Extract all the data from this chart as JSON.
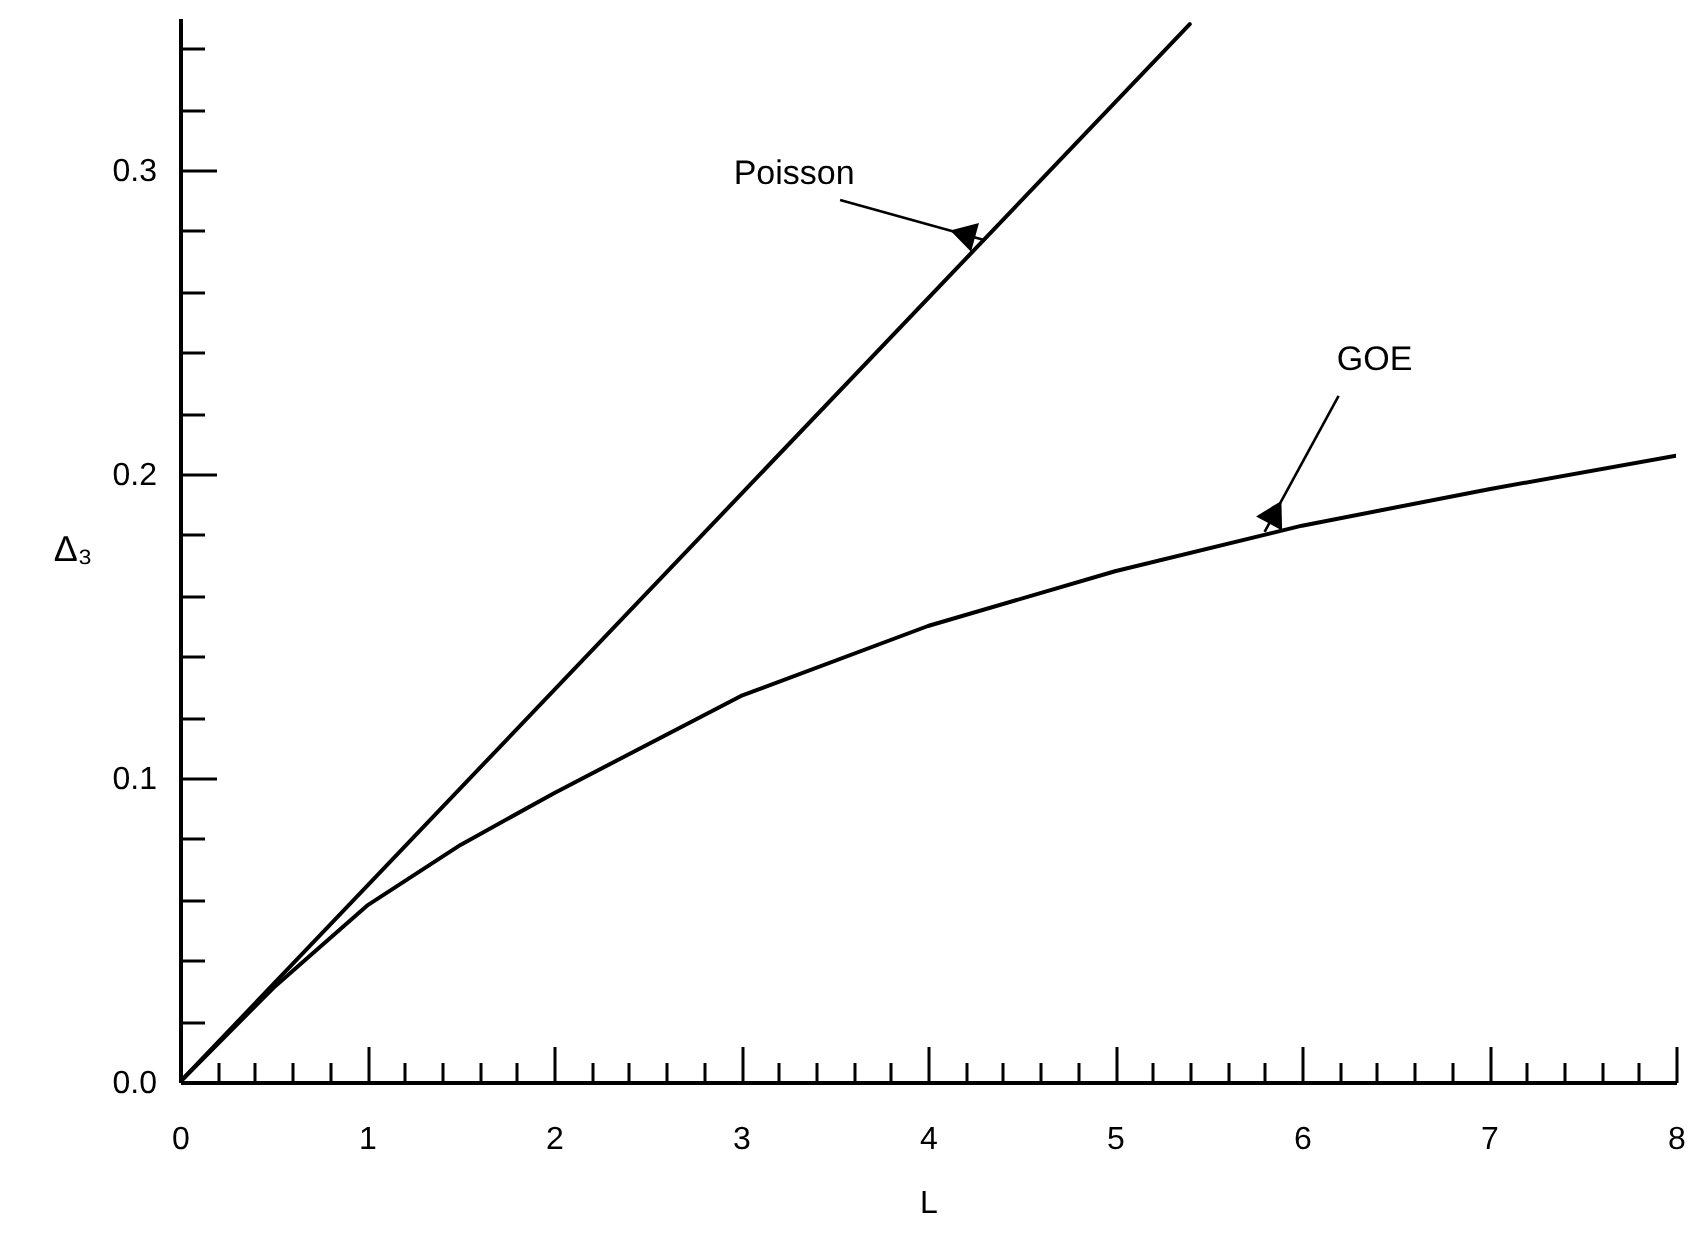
{
  "chart_data": {
    "type": "line",
    "xlabel": "L",
    "ylabel": "Δ₃",
    "xlim": [
      0,
      8
    ],
    "ylim": [
      0,
      0.35
    ],
    "xticks": [
      0,
      {
        "value": 0.2,
        "label": null
      },
      {
        "value": 0.4,
        "label": null
      },
      {
        "value": 0.6,
        "label": null
      },
      {
        "value": 0.8,
        "label": null
      },
      1,
      {
        "value": 1.2,
        "label": null
      },
      {
        "value": 1.4,
        "label": null
      },
      {
        "value": 1.6,
        "label": null
      },
      {
        "value": 1.8,
        "label": null
      },
      2,
      {
        "value": 2.2,
        "label": null
      },
      {
        "value": 2.4,
        "label": null
      },
      {
        "value": 2.6,
        "label": null
      },
      {
        "value": 2.8,
        "label": null
      },
      3,
      {
        "value": 3.2,
        "label": null
      },
      {
        "value": 3.4,
        "label": null
      },
      {
        "value": 3.6,
        "label": null
      },
      {
        "value": 3.8,
        "label": null
      },
      4,
      {
        "value": 4.2,
        "label": null
      },
      {
        "value": 4.4,
        "label": null
      },
      {
        "value": 4.6,
        "label": null
      },
      {
        "value": 4.8,
        "label": null
      },
      5,
      {
        "value": 5.2,
        "label": null
      },
      {
        "value": 5.4,
        "label": null
      },
      {
        "value": 5.6,
        "label": null
      },
      {
        "value": 5.8,
        "label": null
      },
      6,
      {
        "value": 6.2,
        "label": null
      },
      {
        "value": 6.4,
        "label": null
      },
      {
        "value": 6.6,
        "label": null
      },
      {
        "value": 6.8,
        "label": null
      },
      7,
      {
        "value": 7.2,
        "label": null
      },
      {
        "value": 7.4,
        "label": null
      },
      {
        "value": 7.6,
        "label": null
      },
      {
        "value": 7.8,
        "label": null
      },
      8
    ],
    "yticks": [
      {
        "value": 0,
        "label": "0.0"
      },
      {
        "value": 0.02,
        "label": null
      },
      {
        "value": 0.04,
        "label": null
      },
      {
        "value": 0.06,
        "label": null
      },
      {
        "value": 0.08,
        "label": null
      },
      {
        "value": 0.1,
        "label": "0.1"
      },
      {
        "value": 0.12,
        "label": null
      },
      {
        "value": 0.14,
        "label": null
      },
      {
        "value": 0.16,
        "label": null
      },
      {
        "value": 0.18,
        "label": null
      },
      {
        "value": 0.2,
        "label": "0.2"
      },
      {
        "value": 0.22,
        "label": null
      },
      {
        "value": 0.24,
        "label": null
      },
      {
        "value": 0.26,
        "label": null
      },
      {
        "value": 0.28,
        "label": null
      },
      {
        "value": 0.3,
        "label": "0.3"
      },
      {
        "value": 0.32,
        "label": null
      },
      {
        "value": 0.34,
        "label": null
      }
    ],
    "series": [
      {
        "color": "#000000",
        "x": [
          0,
          5.4
        ],
        "values": [
          0,
          0.348
        ]
      },
      {
        "color": "#000000",
        "x": [
          0,
          0.5,
          1,
          1.5,
          2,
          3,
          4,
          5,
          6,
          7,
          8
        ],
        "values": [
          0,
          0.031,
          0.058,
          0.078,
          0.095,
          0.127,
          0.15,
          0.168,
          0.183,
          0.195,
          0.206
        ]
      }
    ],
    "annotations": [
      {
        "text": "Poisson",
        "x": 4.3,
        "y": 0.277
      },
      {
        "text": "GOE",
        "x": 5.8,
        "y": 0.181
      }
    ],
    "grid": false,
    "marker": "none",
    "line_style": "solid"
  }
}
